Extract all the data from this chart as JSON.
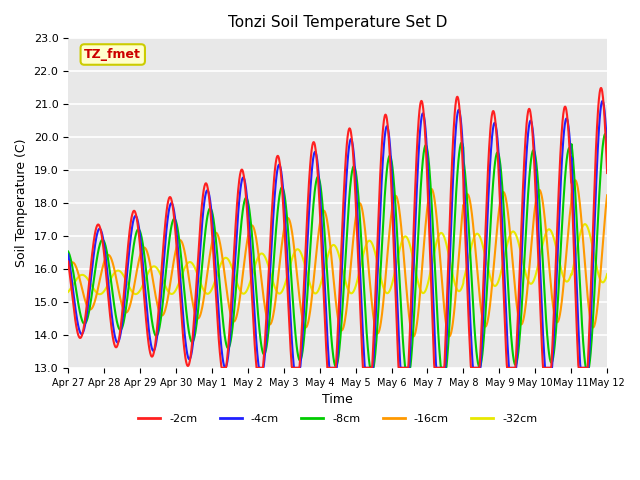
{
  "title": "Tonzi Soil Temperature Set D",
  "xlabel": "Time",
  "ylabel": "Soil Temperature (C)",
  "ylim": [
    13.0,
    23.0
  ],
  "yticks": [
    13.0,
    14.0,
    15.0,
    16.0,
    17.0,
    18.0,
    19.0,
    20.0,
    21.0,
    22.0,
    23.0
  ],
  "xtick_labels": [
    "Apr 27",
    "Apr 28",
    "Apr 29",
    "Apr 30",
    "May 1",
    "May 2",
    "May 3",
    "May 4",
    "May 5",
    "May 6",
    "May 7",
    "May 8",
    "May 9",
    "May 10",
    "May 11",
    "May 12"
  ],
  "series_colors": [
    "#ff2020",
    "#2020ff",
    "#00cc00",
    "#ff9900",
    "#e8e800"
  ],
  "series_labels": [
    "-2cm",
    "-4cm",
    "-8cm",
    "-16cm",
    "-32cm"
  ],
  "annotation_text": "TZ_fmet",
  "annotation_bg": "#ffffcc",
  "annotation_border": "#cccc00",
  "annotation_fg": "#cc0000",
  "bg_color": "#e8e8e8",
  "line_width": 1.5
}
